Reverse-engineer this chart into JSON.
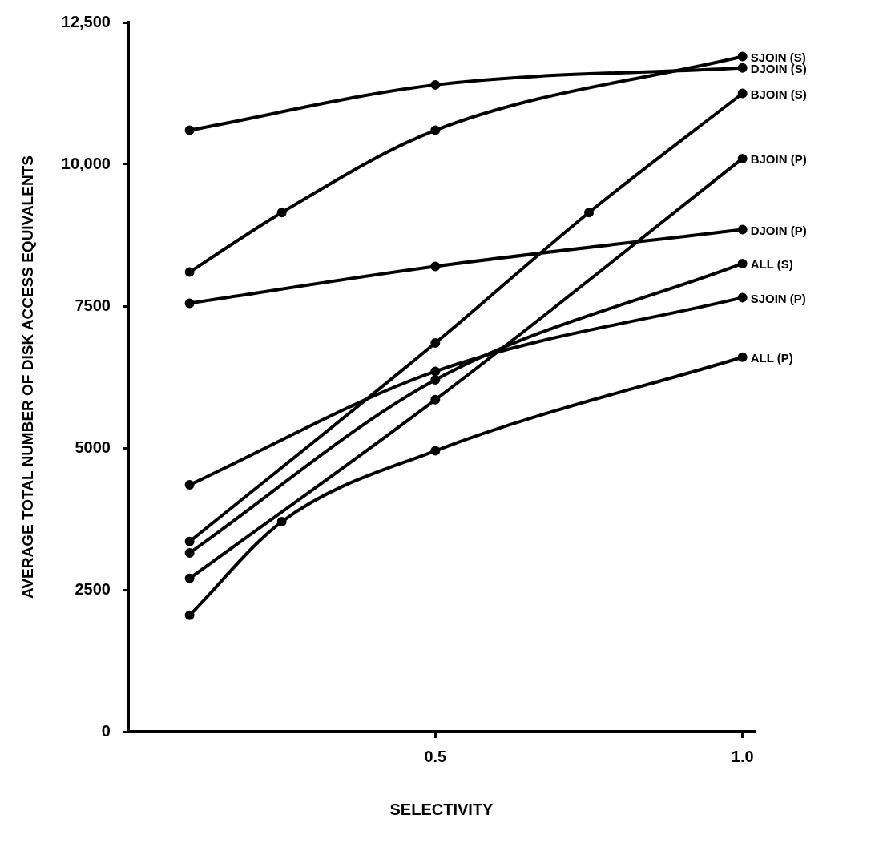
{
  "chart_data": {
    "type": "line",
    "xlabel": "SELECTIVITY",
    "ylabel": "AVERAGE TOTAL NUMBER OF DISK ACCESS EQUIVALENTS",
    "xlim": [
      0,
      1.02
    ],
    "xticks": [
      0.5,
      {
        "value": 1,
        "label": "1.0"
      }
    ],
    "ylim": [
      0,
      12500
    ],
    "yticks": [
      0,
      2500,
      5000,
      7500,
      {
        "value": 10000,
        "label": "10,000"
      },
      {
        "value": 12500,
        "label": "12,500"
      }
    ],
    "grid": false,
    "legend": false,
    "marker": "circle",
    "line_style": "solid",
    "series": [
      {
        "name": "SJOIN (S)",
        "color": "#000000",
        "x": [
          0.1,
          0.25,
          0.5,
          1
        ],
        "values": [
          8100,
          9150,
          10600,
          11900
        ]
      },
      {
        "name": "DJOIN (S)",
        "color": "#000000",
        "x": [
          0.1,
          0.5,
          1
        ],
        "values": [
          10600,
          11400,
          11700
        ]
      },
      {
        "name": "BJOIN (S)",
        "color": "#000000",
        "x": [
          0.1,
          0.5,
          0.75,
          1
        ],
        "values": [
          3350,
          6850,
          9150,
          11250
        ]
      },
      {
        "name": "BJOIN (P)",
        "color": "#000000",
        "x": [
          0.1,
          0.5,
          1
        ],
        "values": [
          2700,
          5850,
          10100
        ]
      },
      {
        "name": "DJOIN (P)",
        "color": "#000000",
        "x": [
          0.1,
          0.5,
          1
        ],
        "values": [
          7550,
          8200,
          8850
        ]
      },
      {
        "name": "ALL (S)",
        "color": "#000000",
        "x": [
          0.1,
          0.5,
          1
        ],
        "values": [
          3150,
          6200,
          8250
        ]
      },
      {
        "name": "SJOIN (P)",
        "color": "#000000",
        "x": [
          0.1,
          0.5,
          1
        ],
        "values": [
          4350,
          6350,
          7650
        ]
      },
      {
        "name": "ALL (P)",
        "color": "#000000",
        "x": [
          0.1,
          0.25,
          0.5,
          1
        ],
        "values": [
          2050,
          3700,
          4950,
          6600
        ]
      }
    ]
  }
}
